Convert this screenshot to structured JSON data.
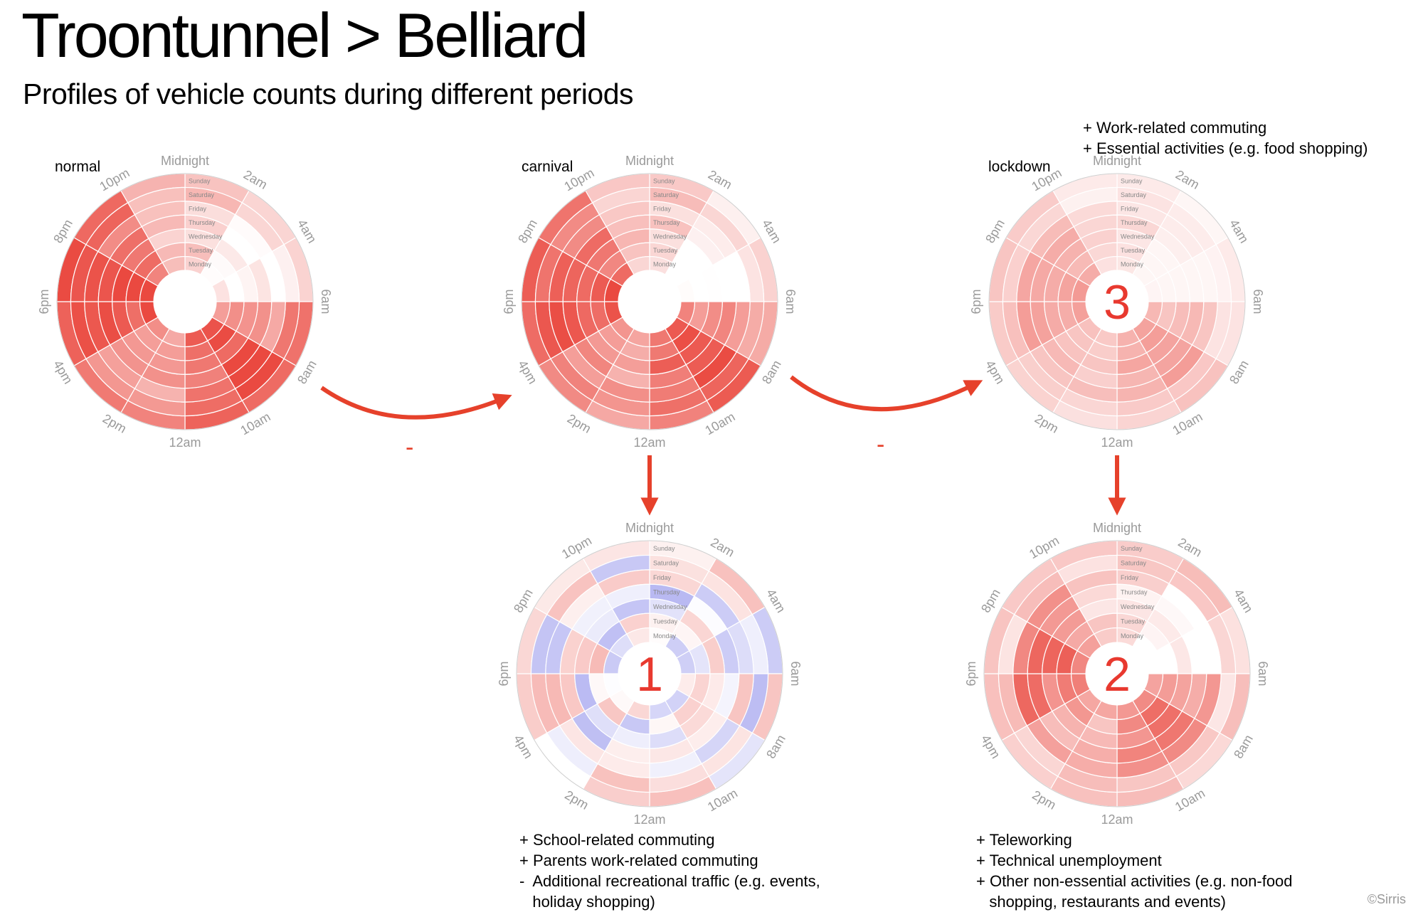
{
  "title": "Troontunnel > Belliard",
  "subtitle": "Profiles of vehicle counts during different periods",
  "hour_labels": [
    "Midnight",
    "2am",
    "4am",
    "6am",
    "8am",
    "10am",
    "12am",
    "2pm",
    "4pm",
    "6pm",
    "8pm",
    "10pm"
  ],
  "day_labels": [
    "Sunday",
    "Saturday",
    "Friday",
    "Thursday",
    "Wednesday",
    "Tuesday",
    "Monday"
  ],
  "panels": {
    "normal": {
      "label": "normal",
      "badge": ""
    },
    "carnival": {
      "label": "carnival",
      "badge": ""
    },
    "lockdown": {
      "label": "lockdown",
      "badge": "3"
    },
    "diff1": {
      "label": "",
      "badge": "1"
    },
    "diff2": {
      "label": "",
      "badge": "2"
    }
  },
  "operators": {
    "minus_1": "-",
    "minus_2": "-"
  },
  "notes": {
    "lockdown": [
      "+ Work-related commuting",
      "+ Essential activities (e.g. food shopping)"
    ],
    "diff1": [
      "+ School-related commuting",
      "+ Parents work-related commuting",
      "-  Additional recreational traffic (e.g. events,",
      "   holiday shopping)"
    ],
    "diff2": [
      "+ Teleworking",
      "+ Technical unemployment",
      "+ Other non-essential activities (e.g. non-food",
      "   shopping, restaurants and events)"
    ]
  },
  "copyright": "©Sirris",
  "colors": {
    "positive": "#e8392f",
    "negative": "#3c3cdc",
    "arrow": "#e6412b",
    "grid": "#cfcfcf",
    "label_grey": "#9a9a9a"
  }
}
